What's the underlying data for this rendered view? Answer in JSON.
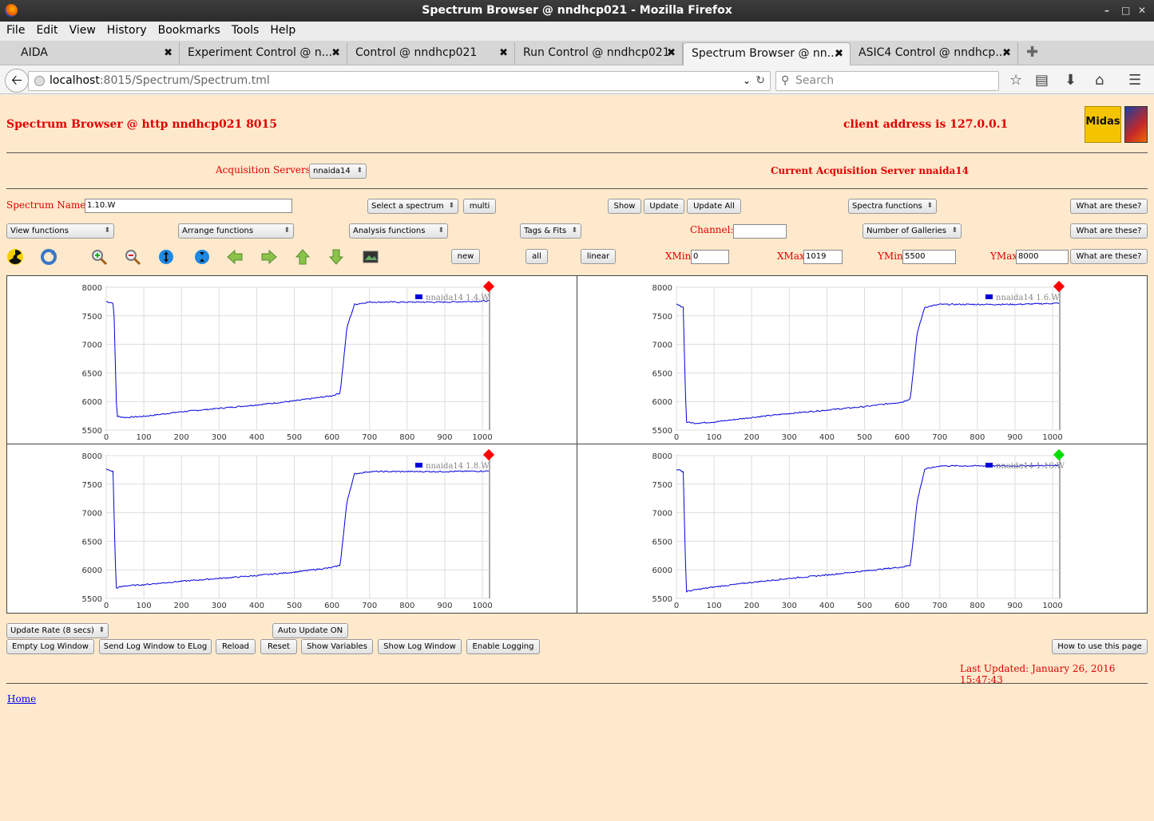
{
  "window": {
    "title": "Spectrum Browser @ nndhcp021 - Mozilla Firefox"
  },
  "menu": [
    "File",
    "Edit",
    "View",
    "History",
    "Bookmarks",
    "Tools",
    "Help"
  ],
  "tabs": [
    {
      "label": "AIDA"
    },
    {
      "label": "Experiment Control @ n..."
    },
    {
      "label": "Control @ nndhcp021"
    },
    {
      "label": "Run Control @ nndhcp021"
    },
    {
      "label": "Spectrum Browser @ nn..."
    },
    {
      "label": "ASIC4 Control @ nndhcp..."
    }
  ],
  "url": {
    "host": "localhost",
    "rest": ":8015/Spectrum/Spectrum.tml"
  },
  "search": {
    "placeholder": "Search"
  },
  "header": {
    "title": "Spectrum Browser @ http nndhcp021 8015",
    "client": "client address is 127.0.0.1",
    "logo_text": "Midas"
  },
  "servers": {
    "label": "Acquisition Servers",
    "selected": "nnaida14",
    "current": "Current Acquisition Server nnaida14"
  },
  "row1": {
    "name_label": "Spectrum Name:",
    "name_value": "1.10.W",
    "select_spectrum": "Select a spectrum",
    "multi": "multi",
    "show": "Show",
    "update": "Update",
    "update_all": "Update All",
    "spectra_functions": "Spectra functions",
    "what": "What are these?"
  },
  "row2": {
    "view_functions": "View functions",
    "arrange_functions": "Arrange functions",
    "analysis_functions": "Analysis functions",
    "tags_fits": "Tags & Fits",
    "channel_label": "Channel:",
    "channel_value": "",
    "galleries": "Number of Galleries",
    "what": "What are these?"
  },
  "row3": {
    "new": "new",
    "all": "all",
    "linear": "linear",
    "xmin_label": "XMin",
    "xmin": "0",
    "xmax_label": "XMax",
    "xmax": "1019",
    "ymin_label": "YMin",
    "ymin": "5500",
    "ymax_label": "YMax",
    "ymax": "8000",
    "what": "What are these?"
  },
  "toolbar_icons": [
    "radiation-icon",
    "refresh-icon",
    "zoom-in-icon",
    "zoom-out-icon",
    "expand-vertical-icon",
    "compress-vertical-icon",
    "arrow-left-icon",
    "arrow-right-icon",
    "arrow-up-icon",
    "arrow-down-icon",
    "image-icon"
  ],
  "chart_data": [
    {
      "type": "line",
      "xlim": [
        0,
        1019
      ],
      "ylim": [
        5500,
        8000
      ],
      "xticks": [
        0,
        100,
        200,
        300,
        400,
        500,
        600,
        700,
        800,
        900,
        1000
      ],
      "yticks": [
        5500,
        6000,
        6500,
        7000,
        7500,
        8000
      ],
      "series": [
        {
          "name": "nnaida14 1.4.W",
          "color": "#0000dd",
          "x": [
            0,
            20,
            28,
            50,
            100,
            200,
            300,
            400,
            500,
            600,
            622,
            640,
            660,
            700,
            800,
            900,
            1019
          ],
          "y": [
            7750,
            7720,
            5740,
            5720,
            5740,
            5820,
            5880,
            5940,
            6010,
            6100,
            6150,
            7300,
            7700,
            7740,
            7740,
            7740,
            7760
          ]
        }
      ],
      "status_color": "#ff0000"
    },
    {
      "type": "line",
      "xlim": [
        0,
        1019
      ],
      "ylim": [
        5500,
        8000
      ],
      "xticks": [
        0,
        100,
        200,
        300,
        400,
        500,
        600,
        700,
        800,
        900,
        1000
      ],
      "yticks": [
        5500,
        6000,
        6500,
        7000,
        7500,
        8000
      ],
      "series": [
        {
          "name": "nnaida14 1.6.W",
          "color": "#0000dd",
          "x": [
            0,
            18,
            26,
            50,
            100,
            200,
            300,
            400,
            500,
            600,
            622,
            640,
            660,
            700,
            800,
            900,
            1019
          ],
          "y": [
            7700,
            7650,
            5640,
            5620,
            5640,
            5720,
            5790,
            5850,
            5910,
            5990,
            6050,
            7200,
            7650,
            7700,
            7700,
            7700,
            7720
          ]
        }
      ],
      "status_color": "#ff0000"
    },
    {
      "type": "line",
      "xlim": [
        0,
        1019
      ],
      "ylim": [
        5500,
        8000
      ],
      "xticks": [
        0,
        100,
        200,
        300,
        400,
        500,
        600,
        700,
        800,
        900,
        1000
      ],
      "yticks": [
        5500,
        6000,
        6500,
        7000,
        7500,
        8000
      ],
      "series": [
        {
          "name": "nnaida14 1.8.W",
          "color": "#0000dd",
          "x": [
            0,
            18,
            26,
            50,
            100,
            200,
            300,
            400,
            500,
            600,
            622,
            640,
            660,
            700,
            800,
            900,
            1019
          ],
          "y": [
            7760,
            7720,
            5680,
            5720,
            5740,
            5800,
            5850,
            5900,
            5960,
            6040,
            6080,
            7200,
            7680,
            7720,
            7720,
            7720,
            7730
          ]
        }
      ],
      "status_color": "#ff0000"
    },
    {
      "type": "line",
      "xlim": [
        0,
        1019
      ],
      "ylim": [
        5500,
        8000
      ],
      "xticks": [
        0,
        100,
        200,
        300,
        400,
        500,
        600,
        700,
        800,
        900,
        1000
      ],
      "yticks": [
        5500,
        6000,
        6500,
        7000,
        7500,
        8000
      ],
      "series": [
        {
          "name": "nnaida14 1.10.W",
          "color": "#0000dd",
          "x": [
            0,
            18,
            26,
            50,
            100,
            200,
            300,
            400,
            500,
            600,
            622,
            640,
            660,
            700,
            800,
            900,
            1019
          ],
          "y": [
            7760,
            7720,
            5620,
            5650,
            5700,
            5780,
            5850,
            5910,
            5980,
            6050,
            6080,
            7200,
            7760,
            7820,
            7820,
            7820,
            7830
          ]
        }
      ],
      "status_color": "#00dd00"
    }
  ],
  "footer": {
    "update_rate": "Update Rate (8 secs)",
    "auto_update": "Auto Update ON",
    "empty_log": "Empty Log Window",
    "send_log": "Send Log Window to ELog",
    "reload": "Reload",
    "reset": "Reset",
    "show_vars": "Show Variables",
    "show_log": "Show Log Window",
    "enable_logging": "Enable Logging",
    "how_to": "How to use this page",
    "last_updated": "Last Updated: January 26, 2016 15:47:43",
    "home": "Home"
  }
}
